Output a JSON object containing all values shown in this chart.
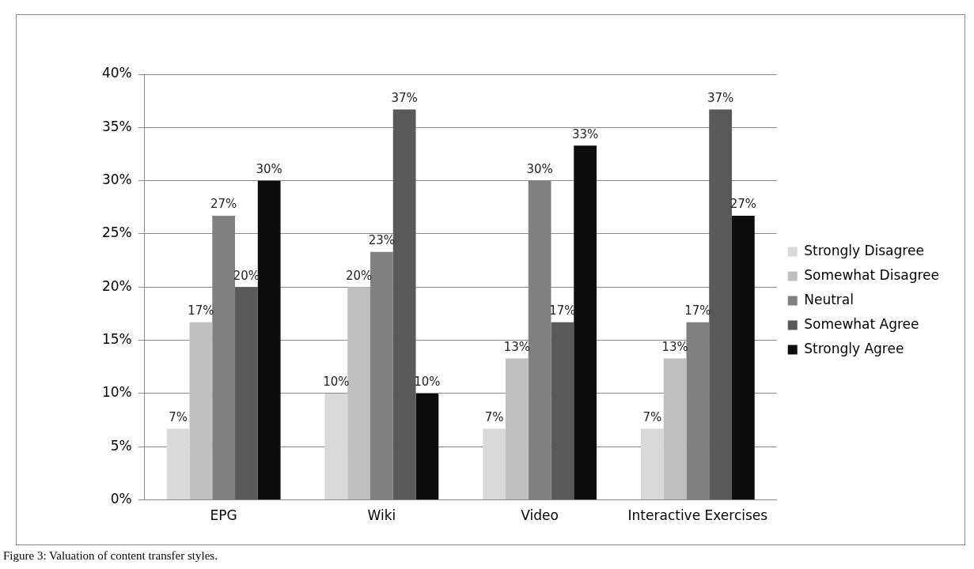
{
  "chart_data": {
    "type": "bar",
    "categories": [
      "EPG",
      "Wiki",
      "Video",
      "Interactive Exercises"
    ],
    "series": [
      {
        "name": "Strongly Disagree",
        "color": "#d9d9d9",
        "values": [
          6.7,
          10,
          6.7,
          6.7
        ],
        "value_labels": [
          "7%",
          "10%",
          "7%",
          "7%"
        ]
      },
      {
        "name": "Somewhat Disagree",
        "color": "#bfbfbf",
        "values": [
          16.7,
          20,
          13.3,
          13.3
        ],
        "value_labels": [
          "17%",
          "20%",
          "13%",
          "13%"
        ]
      },
      {
        "name": "Neutral",
        "color": "#808080",
        "values": [
          26.7,
          23.3,
          30,
          16.7
        ],
        "value_labels": [
          "27%",
          "23%",
          "30%",
          "17%"
        ]
      },
      {
        "name": "Somewhat Agree",
        "color": "#595959",
        "values": [
          20,
          36.7,
          16.7,
          36.7
        ],
        "value_labels": [
          "20%",
          "37%",
          "17%",
          "37%"
        ]
      },
      {
        "name": "Strongly Agree",
        "color": "#0d0d0d",
        "values": [
          30,
          10,
          33.3,
          26.7
        ],
        "value_labels": [
          "30%",
          "10%",
          "33%",
          "27%"
        ]
      }
    ],
    "ylim": [
      0,
      40
    ],
    "yticks": [
      {
        "value": 0,
        "label": "0%"
      },
      {
        "value": 5,
        "label": "5%"
      },
      {
        "value": 10,
        "label": "10%"
      },
      {
        "value": 15,
        "label": "15%"
      },
      {
        "value": 20,
        "label": "20%"
      },
      {
        "value": 25,
        "label": "25%"
      },
      {
        "value": 30,
        "label": "30%"
      },
      {
        "value": 35,
        "label": "35%"
      },
      {
        "value": 40,
        "label": "40%"
      }
    ],
    "grid": "y",
    "legend": "right",
    "annotations": [
      "Figure 3: Valuation of content transfer styles."
    ]
  }
}
